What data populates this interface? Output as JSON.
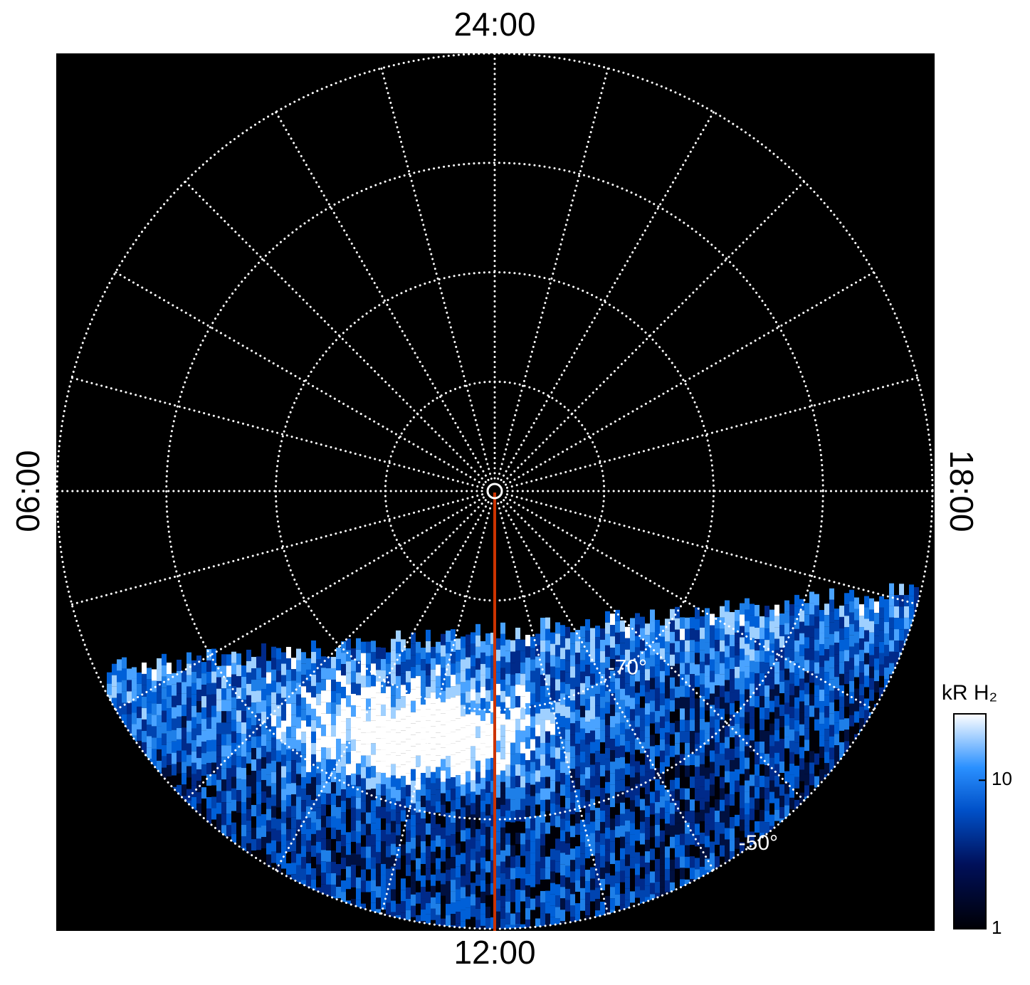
{
  "chart_data": {
    "type": "polar",
    "rlim": [
      -90,
      -50
    ],
    "rgrid": [
      -50,
      -60,
      -70,
      -80
    ],
    "rlabels": [
      {
        "value": -70,
        "label": "-70°"
      },
      {
        "value": -50,
        "label": "-50°"
      }
    ],
    "meridians": [
      0,
      1,
      2,
      3,
      4,
      5,
      6,
      7,
      8,
      9,
      10,
      11,
      12,
      13,
      14,
      15,
      16,
      17,
      18,
      19,
      20,
      21,
      22,
      23
    ],
    "thetaticks": [
      {
        "value": 0,
        "label": "24:00"
      },
      {
        "value": 6,
        "label": "06:00"
      },
      {
        "value": 12,
        "label": "12:00"
      },
      {
        "value": 18,
        "label": "18:00"
      }
    ],
    "colorbar": {
      "label": "kR H₂",
      "log": true,
      "clim": [
        1,
        28
      ],
      "ticks": [
        1,
        10
      ]
    }
  }
}
